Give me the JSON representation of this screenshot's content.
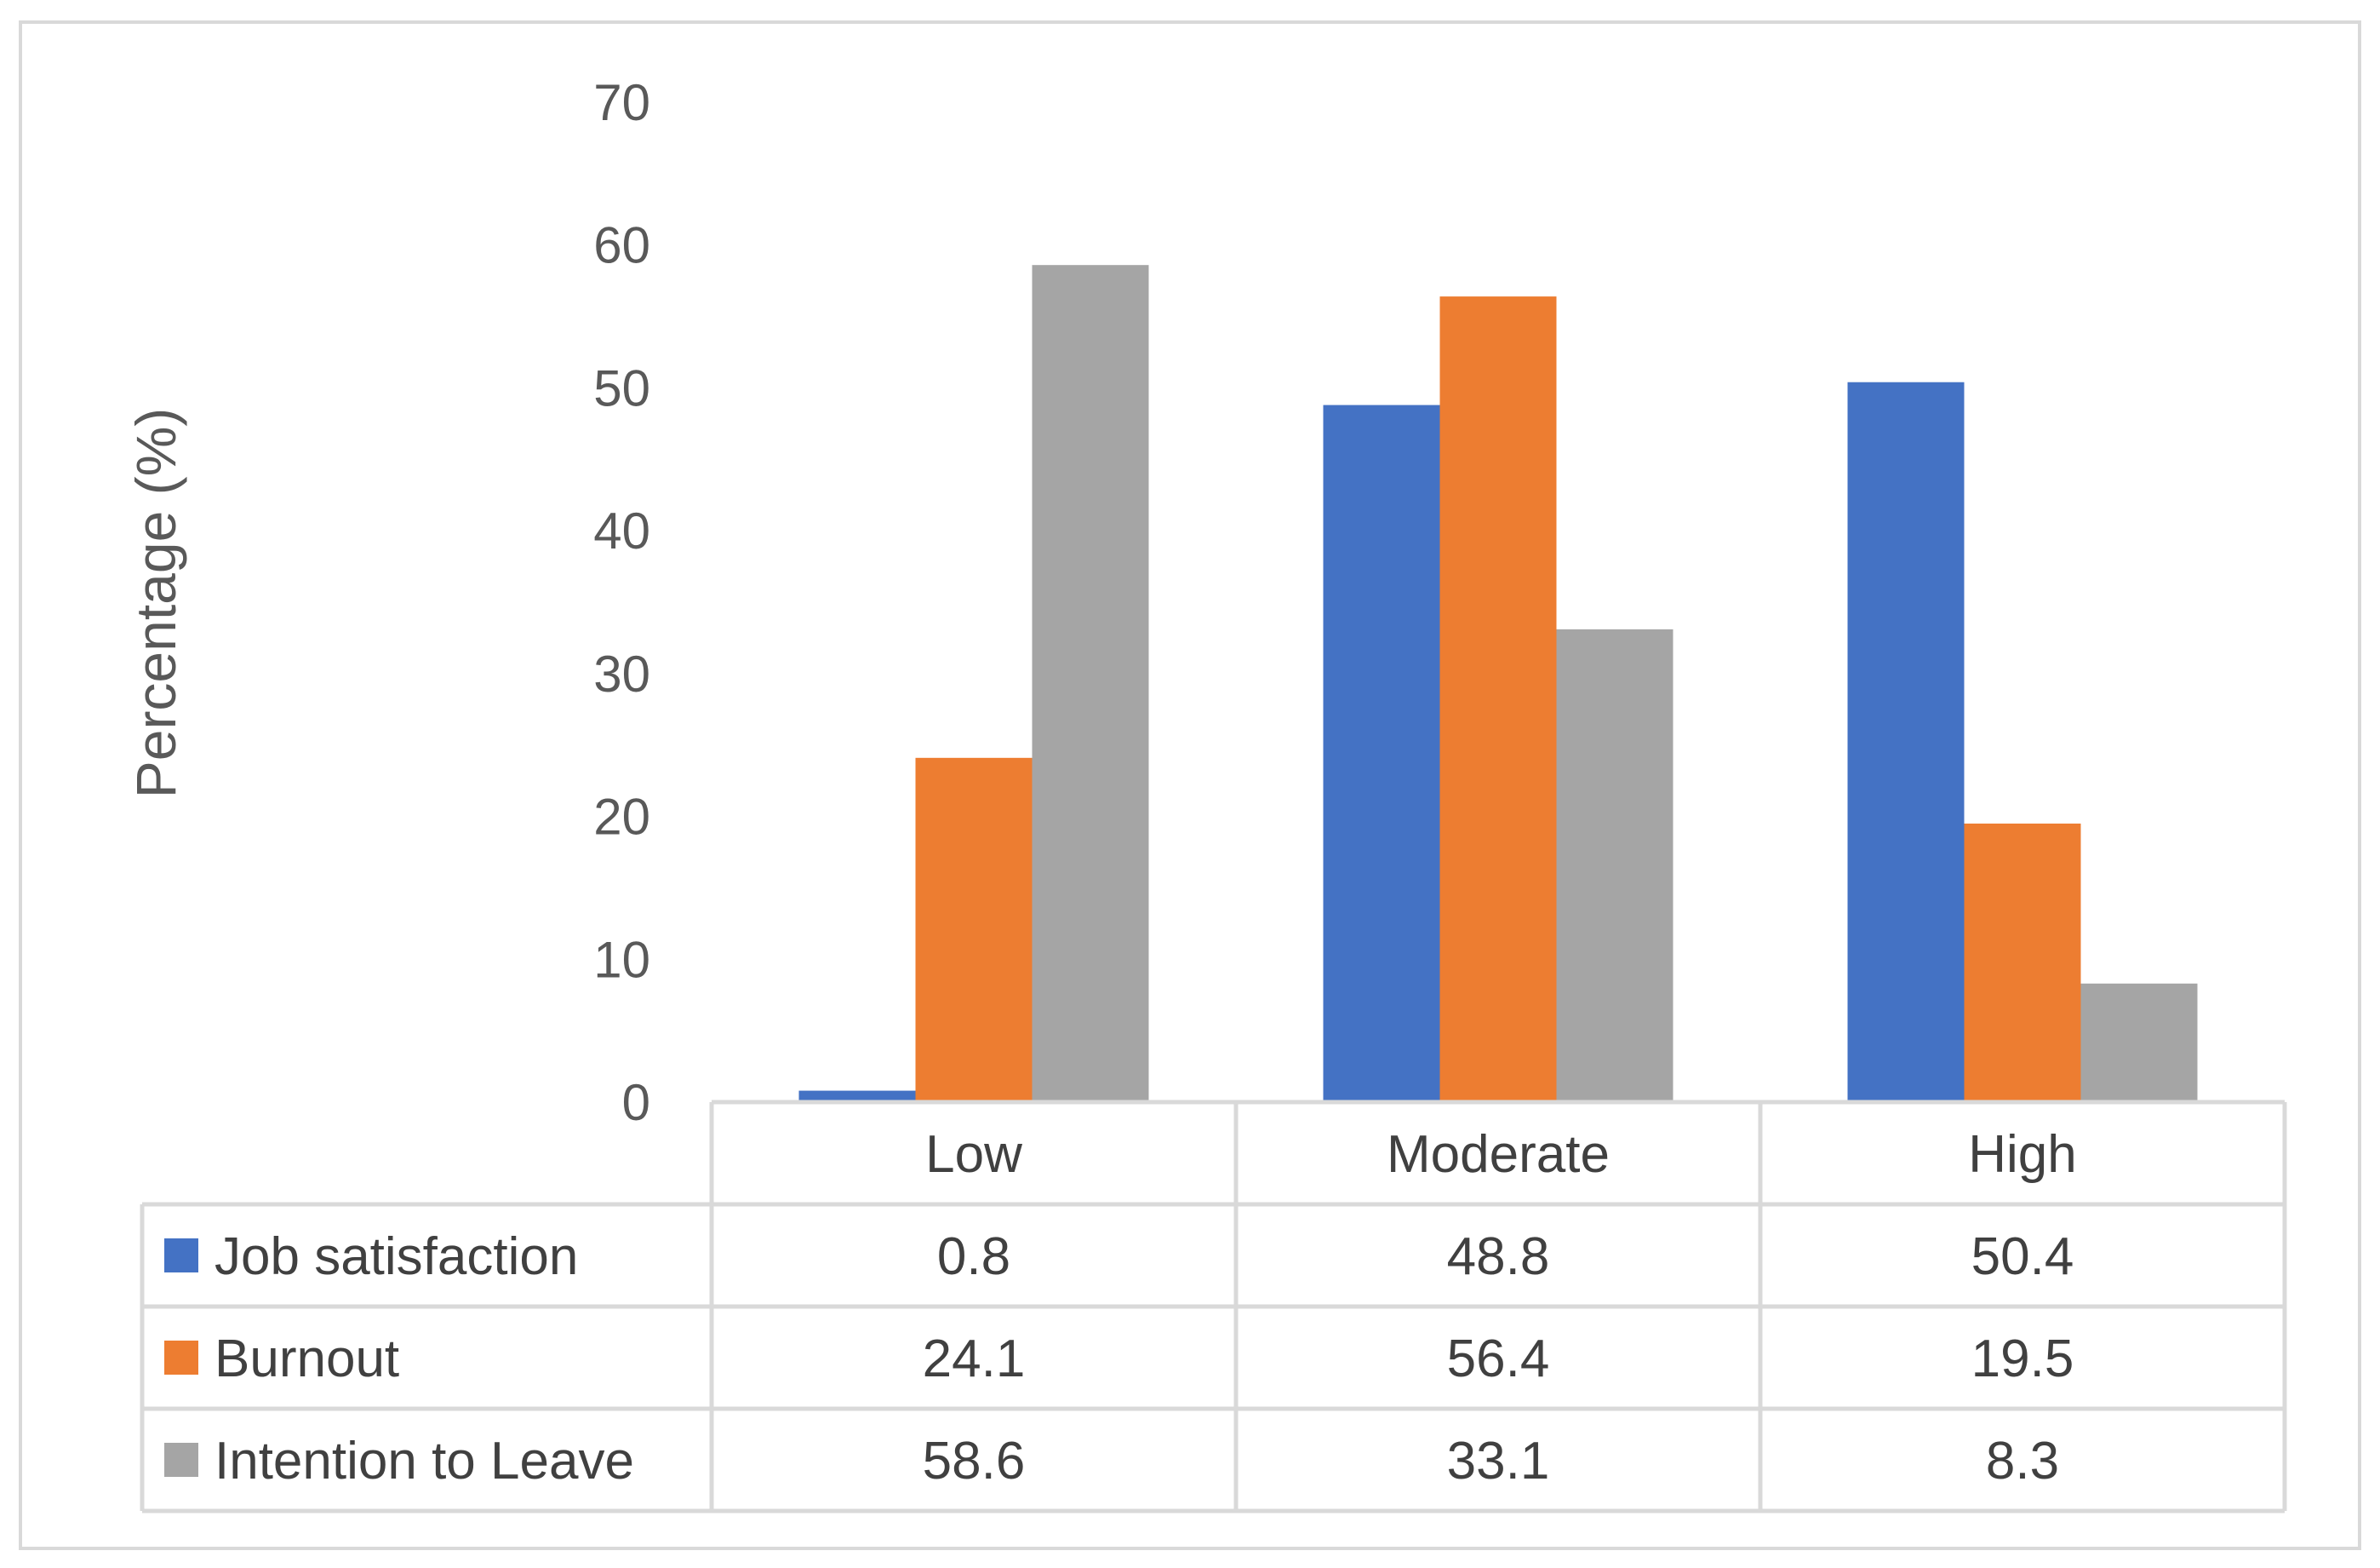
{
  "chart_data": {
    "type": "bar",
    "title": "",
    "xlabel": "",
    "ylabel": "Percentage (%)",
    "ylim": [
      0,
      70
    ],
    "yticks": [
      0,
      10,
      20,
      30,
      40,
      50,
      60,
      70
    ],
    "grid": false,
    "legend": "data-table",
    "categories": [
      "Low",
      "Moderate",
      "High"
    ],
    "series": [
      {
        "name": "Job satisfaction",
        "color": "#4472c4",
        "values": [
          0.8,
          48.8,
          50.4
        ]
      },
      {
        "name": "Burnout",
        "color": "#ed7d31",
        "values": [
          24.1,
          56.4,
          19.5
        ]
      },
      {
        "name": "Intention to Leave",
        "color": "#a5a5a5",
        "values": [
          58.6,
          33.1,
          8.3
        ]
      }
    ]
  }
}
